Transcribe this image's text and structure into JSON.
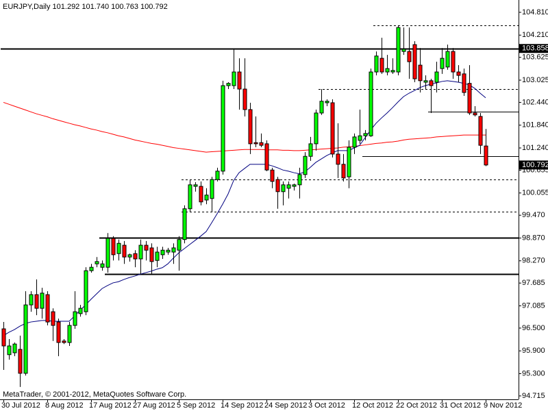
{
  "chart_data": {
    "type": "candlestick",
    "title": "EURJPY,Daily  101.292 101.740 100.763 100.792",
    "watermark": "MetaTrader, © 2001-2012, MetaQuotes Software Corp.",
    "categories": [
      "30 Jul 2012",
      null,
      null,
      null,
      null,
      null,
      null,
      null,
      "8 Aug 2012",
      null,
      null,
      null,
      null,
      null,
      null,
      null,
      "17 Aug 2012",
      null,
      null,
      null,
      null,
      null,
      null,
      null,
      "27 Aug 2012",
      null,
      null,
      null,
      null,
      null,
      null,
      null,
      "5 Sep 2012",
      null,
      null,
      null,
      null,
      null,
      null,
      null,
      "14 Sep 2012",
      null,
      null,
      null,
      null,
      null,
      null,
      null,
      "24 Sep 2012",
      null,
      null,
      null,
      null,
      null,
      null,
      null,
      "3 Oct 2012",
      null,
      null,
      null,
      null,
      null,
      null,
      null,
      "12 Oct 2012",
      null,
      null,
      null,
      null,
      null,
      null,
      null,
      "22 Oct 2012",
      null,
      null,
      null,
      null,
      null,
      null,
      null,
      "31 Oct 2012",
      null,
      null,
      null,
      null,
      null,
      null,
      null,
      "9 Nov 2012"
    ],
    "open": [
      96.48,
      95.8,
      95.85,
      95.94,
      95.31,
      97.11,
      97.38,
      97.02,
      97.38,
      96.93,
      96.66,
      96.16,
      96.12,
      96.57,
      96.88,
      96.93,
      98.01,
      98.19,
      98.1,
      98.1,
      98.86,
      98.46,
      98.68,
      98.37,
      98.46,
      98.32,
      98.68,
      98.61,
      98.28,
      98.43,
      98.5,
      98.5,
      98.55,
      98.83,
      99.64,
      100.23,
      100.23,
      99.87,
      99.91,
      100.41,
      100.63,
      102.88,
      102.88,
      103.24,
      102.79,
      102.25,
      101.38,
      101.38,
      101.35,
      100.66,
      100.41,
      100.09,
      100.18,
      100.23,
      100.27,
      100.54,
      101.02,
      101.35,
      102.16,
      102.43,
      102.43,
      101.08,
      100.81,
      100.48,
      101.26,
      101.44,
      101.56,
      101.56,
      103.24,
      103.6,
      103.24,
      103.24,
      103.24,
      103.78,
      103.78,
      103.96,
      103.42,
      102.97,
      103.01,
      102.97,
      103.33,
      103.37,
      103.78,
      103.24,
      103.19,
      102.94,
      102.16,
      102.07,
      101.292
    ],
    "high": [
      96.66,
      96.21,
      96.12,
      96.3,
      97.47,
      97.47,
      97.78,
      97.56,
      97.47,
      97.02,
      96.75,
      96.21,
      96.66,
      97.47,
      97.11,
      98.1,
      98.19,
      98.37,
      98.28,
      99.0,
      98.92,
      98.83,
      98.79,
      98.46,
      98.55,
      98.83,
      98.79,
      98.73,
      98.64,
      98.64,
      98.61,
      98.73,
      98.92,
      99.73,
      100.41,
      100.34,
      100.36,
      100.18,
      100.48,
      100.72,
      103.01,
      102.97,
      103.84,
      103.6,
      103.6,
      102.43,
      102.07,
      101.62,
      101.44,
      100.72,
      100.48,
      100.36,
      100.36,
      100.3,
      100.72,
      101.13,
      101.53,
      102.25,
      102.79,
      102.52,
      102.52,
      101.89,
      101.08,
      101.44,
      101.62,
      102.25,
      101.71,
      103.33,
      103.78,
      104.14,
      103.69,
      103.6,
      104.47,
      104.41,
      104.41,
      104.05,
      103.87,
      103.15,
      103.06,
      103.51,
      103.87,
      103.96,
      103.87,
      103.42,
      103.33,
      103.42,
      102.34,
      102.16,
      101.74
    ],
    "low": [
      95.4,
      95.67,
      95.76,
      94.95,
      95.25,
      96.93,
      96.84,
      96.75,
      96.57,
      96.16,
      95.76,
      96.08,
      96.03,
      96.48,
      96.8,
      96.84,
      97.96,
      98.1,
      98.01,
      97.96,
      98.28,
      98.28,
      98.19,
      98.25,
      98.1,
      97.92,
      98.28,
      97.92,
      98.1,
      98.32,
      98.43,
      98.19,
      98.01,
      98.73,
      99.55,
      100.09,
      99.73,
      99.76,
      99.55,
      100.36,
      100.54,
      102.79,
      102.79,
      102.25,
      102.07,
      101.08,
      101.26,
      101.26,
      100.63,
      100.18,
      99.64,
      99.73,
      99.91,
      100.12,
      99.91,
      100.45,
      100.9,
      101.17,
      102.11,
      102.34,
      100.99,
      100.45,
      100.36,
      100.18,
      101.08,
      101.35,
      101.44,
      101.53,
      103.15,
      103.19,
      103.15,
      103.19,
      103.15,
      103.69,
      103.06,
      102.97,
      102.7,
      102.79,
      102.16,
      102.7,
      103.19,
      103.3,
      103.06,
      102.97,
      102.61,
      102.11,
      102.07,
      101.08,
      100.763
    ],
    "close": [
      96.03,
      96.03,
      96.08,
      95.31,
      97.11,
      97.38,
      97.02,
      97.42,
      96.66,
      96.57,
      96.12,
      96.12,
      96.57,
      96.93,
      97.02,
      98.01,
      98.1,
      98.25,
      98.19,
      98.86,
      98.43,
      98.73,
      98.37,
      98.43,
      98.32,
      98.68,
      98.55,
      98.25,
      98.5,
      98.55,
      98.55,
      98.61,
      98.83,
      99.64,
      100.27,
      100.27,
      99.82,
      100.0,
      100.41,
      100.63,
      102.88,
      102.94,
      103.24,
      102.79,
      102.25,
      101.35,
      101.35,
      101.31,
      100.66,
      100.36,
      100.09,
      100.27,
      100.27,
      100.27,
      100.54,
      101.02,
      101.35,
      102.16,
      102.47,
      102.47,
      101.08,
      100.81,
      100.45,
      101.26,
      101.53,
      101.56,
      101.62,
      103.24,
      103.66,
      103.24,
      103.33,
      103.28,
      104.41,
      103.84,
      103.51,
      103.06,
      103.01,
      103.01,
      102.88,
      103.24,
      103.6,
      103.78,
      103.24,
      103.15,
      102.7,
      102.16,
      102.11,
      101.31,
      100.792
    ],
    "up_color": "#00ff00",
    "down_color": "#ff0000",
    "lines": [
      {
        "color": "#ff0000",
        "values": [
          102.44,
          102.39,
          102.34,
          102.29,
          102.24,
          102.19,
          102.14,
          102.1,
          102.06,
          102.01,
          101.97,
          101.93,
          101.89,
          101.85,
          101.82,
          101.78,
          101.74,
          101.71,
          101.67,
          101.64,
          101.6,
          101.56,
          101.53,
          101.49,
          101.45,
          101.42,
          101.39,
          101.36,
          101.34,
          101.31,
          101.28,
          101.25,
          101.23,
          101.21,
          101.19,
          101.17,
          101.15,
          101.13,
          101.14,
          101.15,
          101.16,
          101.17,
          101.18,
          101.19,
          101.2,
          101.2,
          101.2,
          101.2,
          101.19,
          101.19,
          101.19,
          101.18,
          101.18,
          101.17,
          101.17,
          101.18,
          101.19,
          101.2,
          101.21,
          101.22,
          101.23,
          101.24,
          101.26,
          101.27,
          101.28,
          101.3,
          101.32,
          101.34,
          101.36,
          101.37,
          101.39,
          101.4,
          101.42,
          101.45,
          101.47,
          101.48,
          101.49,
          101.5,
          101.51,
          101.53,
          101.54,
          101.55,
          101.56,
          101.57,
          101.58,
          101.58,
          101.58,
          101.58,
          101.58
        ]
      },
      {
        "color": "#000080",
        "values": [
          96.3,
          96.39,
          96.46,
          96.55,
          96.62,
          96.66,
          96.68,
          96.7,
          96.7,
          96.68,
          96.68,
          96.68,
          96.68,
          96.82,
          96.97,
          97.11,
          97.26,
          97.4,
          97.54,
          97.62,
          97.69,
          97.72,
          97.78,
          97.83,
          97.87,
          97.92,
          97.96,
          98.0,
          98.05,
          98.09,
          98.19,
          98.34,
          98.48,
          98.59,
          98.7,
          98.81,
          98.92,
          99.04,
          99.27,
          99.51,
          99.76,
          100.03,
          100.38,
          100.59,
          100.7,
          100.81,
          100.81,
          100.81,
          100.81,
          100.77,
          100.72,
          100.66,
          100.63,
          100.59,
          100.56,
          100.61,
          100.73,
          100.86,
          100.95,
          101.04,
          101.11,
          101.17,
          101.17,
          101.17,
          101.24,
          101.31,
          101.51,
          101.71,
          101.89,
          102.03,
          102.16,
          102.3,
          102.45,
          102.59,
          102.68,
          102.75,
          102.83,
          102.88,
          102.92,
          102.95,
          102.99,
          103.01,
          102.99,
          102.97,
          102.94,
          102.9,
          102.81,
          102.68,
          102.56
        ]
      }
    ],
    "levels": [
      {
        "value": 103.858,
        "style": "solid",
        "width": 2,
        "start": 0
      },
      {
        "value": 98.87,
        "style": "solid",
        "width": 2,
        "start": 18
      },
      {
        "value": 97.92,
        "style": "solid",
        "width": 2,
        "start": 19
      },
      {
        "value": 102.2,
        "style": "solid",
        "width": 1,
        "start": 78
      },
      {
        "value": 101.02,
        "style": "solid",
        "width": 1,
        "start": 66
      },
      {
        "value": 104.47,
        "style": "dashed",
        "width": 1,
        "start": 68
      },
      {
        "value": 102.79,
        "style": "dashed",
        "width": 1,
        "start": 58
      },
      {
        "value": 100.41,
        "style": "dashed",
        "width": 1,
        "start": 33
      },
      {
        "value": 99.56,
        "style": "dashed",
        "width": 1,
        "start": 33
      }
    ],
    "axis_markers": [
      103.858,
      100.792
    ],
    "ylim": [
      94.624,
      105.134
    ],
    "yticks": [
      {
        "value": 104.81,
        "label": "104.810"
      },
      {
        "value": 104.21,
        "label": "104.210"
      },
      103.625,
      103.025,
      {
        "value": 102.44,
        "label": "102.440"
      },
      {
        "value": 101.84,
        "label": "101.840"
      },
      {
        "value": 101.24,
        "label": "101.240"
      },
      100.655,
      100.055,
      {
        "value": 99.47,
        "label": "99.470"
      },
      {
        "value": 98.87,
        "label": "98.870"
      },
      {
        "value": 98.27,
        "label": "98.270"
      },
      97.685,
      97.085,
      {
        "value": 96.5,
        "label": "96.500"
      },
      {
        "value": 95.9,
        "label": "95.900"
      },
      {
        "value": 95.3,
        "label": "95.300"
      },
      94.715
    ],
    "grid": false
  }
}
